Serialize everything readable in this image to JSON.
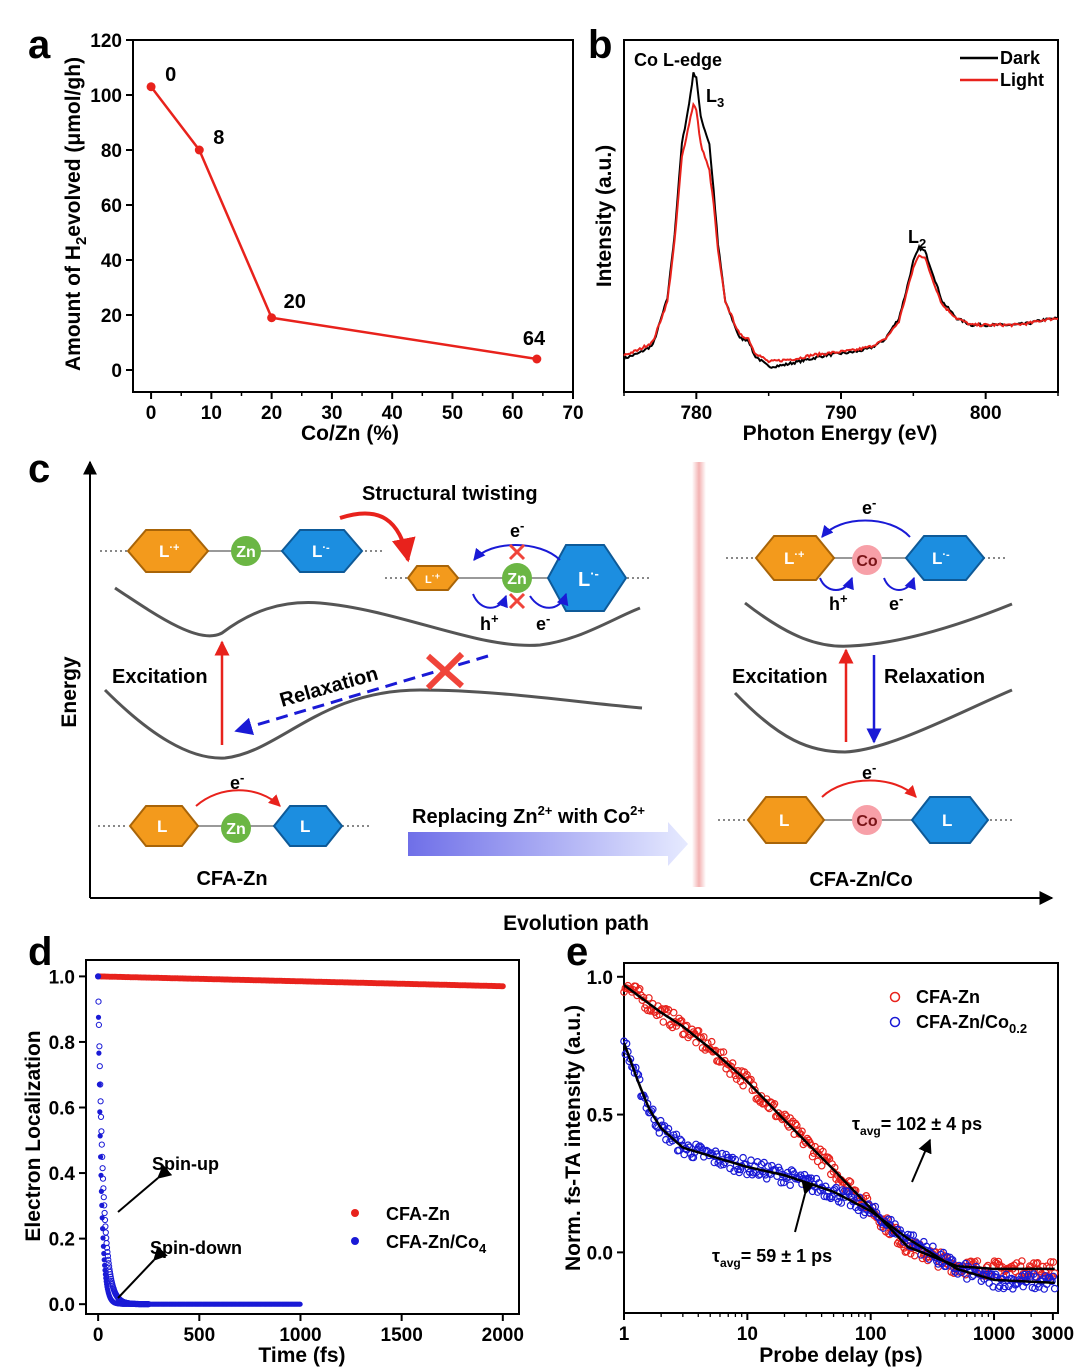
{
  "panels": {
    "a": "a",
    "b": "b",
    "c": "c",
    "d": "d",
    "e": "e"
  },
  "chart_data": [
    {
      "id": "a",
      "type": "line",
      "xlabel": "Co/Zn (%)",
      "ylabel_parts": [
        "Amount of H",
        "2",
        "evolved  (μmol/gh)"
      ],
      "xlim": [
        -3,
        70
      ],
      "ylim": [
        -8,
        120
      ],
      "xticks": [
        0,
        10,
        20,
        30,
        40,
        50,
        60,
        70
      ],
      "yticks": [
        0,
        20,
        40,
        60,
        80,
        100,
        120
      ],
      "color": "#e8221c",
      "x": [
        0,
        8,
        20,
        64
      ],
      "y": [
        103,
        80,
        19,
        4
      ],
      "point_labels": [
        "0",
        "8",
        "20",
        "64"
      ]
    },
    {
      "id": "b",
      "type": "line",
      "title": "Co L-edge",
      "xlabel": "Photon Energy (eV)",
      "ylabel": "Intensity (a.u.)",
      "xlim": [
        775,
        805
      ],
      "ylim": [
        0,
        1.05
      ],
      "xticks": [
        780,
        790,
        800
      ],
      "legend_position": "top-right",
      "peak_labels": [
        {
          "main": "L",
          "sub": "3",
          "x": 780.6,
          "y": 0.95
        },
        {
          "main": "L",
          "sub": "2",
          "x": 795.0,
          "y": 0.42
        }
      ],
      "series": [
        {
          "name": "Dark",
          "color": "#000000",
          "x": [
            775,
            776,
            777,
            778,
            778.5,
            779,
            779.5,
            779.8,
            780,
            780.3,
            780.6,
            780.9,
            781.2,
            781.5,
            782,
            783,
            783.6,
            784,
            785,
            786,
            787,
            788,
            789,
            790,
            791,
            792,
            793,
            794,
            794.5,
            795,
            795.4,
            795.8,
            796.3,
            797,
            798,
            799,
            800,
            801,
            802,
            803,
            804,
            805
          ],
          "y": [
            0.1,
            0.115,
            0.14,
            0.28,
            0.47,
            0.74,
            0.86,
            0.95,
            0.94,
            0.82,
            0.78,
            0.74,
            0.6,
            0.44,
            0.27,
            0.16,
            0.155,
            0.11,
            0.075,
            0.08,
            0.09,
            0.1,
            0.11,
            0.115,
            0.12,
            0.13,
            0.155,
            0.22,
            0.3,
            0.39,
            0.43,
            0.42,
            0.36,
            0.27,
            0.22,
            0.2,
            0.2,
            0.2,
            0.2,
            0.205,
            0.215,
            0.22
          ]
        },
        {
          "name": "Light",
          "color": "#e8221c",
          "x": [
            775,
            776,
            777,
            778,
            778.5,
            779,
            779.5,
            779.8,
            780,
            780.3,
            780.6,
            780.9,
            781.2,
            781.5,
            782,
            783,
            783.6,
            784,
            785,
            786,
            787,
            788,
            789,
            790,
            791,
            792,
            793,
            794,
            794.5,
            795,
            795.4,
            795.8,
            796.3,
            797,
            798,
            799,
            800,
            801,
            802,
            803,
            804,
            805
          ],
          "y": [
            0.11,
            0.125,
            0.15,
            0.27,
            0.45,
            0.7,
            0.8,
            0.86,
            0.84,
            0.74,
            0.7,
            0.66,
            0.56,
            0.42,
            0.27,
            0.17,
            0.16,
            0.12,
            0.09,
            0.095,
            0.1,
            0.11,
            0.115,
            0.12,
            0.125,
            0.135,
            0.155,
            0.21,
            0.29,
            0.37,
            0.41,
            0.4,
            0.34,
            0.26,
            0.22,
            0.2,
            0.2,
            0.2,
            0.2,
            0.205,
            0.215,
            0.22
          ]
        }
      ]
    },
    {
      "id": "d",
      "type": "scatter",
      "xlabel": "Time (fs)",
      "ylabel": "Electron Localization",
      "xlim": [
        -60,
        2080
      ],
      "ylim": [
        -0.03,
        1.05
      ],
      "xticks": [
        0,
        500,
        1000,
        1500,
        2000
      ],
      "yticks": [
        0.0,
        0.2,
        0.4,
        0.6,
        0.8,
        1.0
      ],
      "legend_position": "right",
      "annotations": [
        "Spin-up",
        "Spin-down"
      ],
      "series": [
        {
          "name": "CFA-Zn",
          "color": "#e8221c",
          "x_range": [
            0,
            2000
          ],
          "y_start": 1.0,
          "y_end": 0.97
        },
        {
          "name_parts": [
            "CFA-Zn/Co",
            "4"
          ],
          "color": "#1a1ad6",
          "x_range": [
            0,
            1000
          ],
          "spin_up_decay_tau_fs": 25,
          "spin_down_decay_tau_fs": 15,
          "plateau": 0.0
        }
      ]
    },
    {
      "id": "e",
      "type": "scatter",
      "xlabel": "Probe delay (ps)",
      "ylabel": "Norm. fs-TA intensity (a.u.)",
      "xscale": "log",
      "xlim": [
        1,
        3300
      ],
      "ylim": [
        -0.22,
        1.05
      ],
      "xticks": [
        1,
        10,
        100,
        1000,
        3000
      ],
      "yticks": [
        0.0,
        0.5,
        1.0
      ],
      "legend_position": "top-right",
      "series": [
        {
          "name": "CFA-Zn",
          "color": "#e8221c",
          "fit_x": [
            1,
            2,
            3,
            5,
            10,
            20,
            50,
            100,
            200,
            500,
            1000,
            3000
          ],
          "fit_y": [
            0.97,
            0.87,
            0.82,
            0.74,
            0.62,
            0.48,
            0.3,
            0.16,
            0.02,
            -0.05,
            -0.06,
            -0.06
          ]
        },
        {
          "name_parts": [
            "CFA-Zn/Co",
            "0.2"
          ],
          "color": "#1a1ad6",
          "fit_x": [
            1,
            1.3,
            1.6,
            2,
            3,
            5,
            10,
            20,
            50,
            100,
            200,
            500,
            1000,
            3000
          ],
          "fit_y": [
            0.76,
            0.62,
            0.52,
            0.45,
            0.38,
            0.35,
            0.31,
            0.28,
            0.22,
            0.15,
            0.05,
            -0.06,
            -0.1,
            -0.11
          ]
        }
      ],
      "annotations": [
        {
          "prefix": "τ",
          "sub": "avg",
          "text": "= 102 ± 4 ps"
        },
        {
          "prefix": "τ",
          "sub": "avg",
          "text": "= 59 ± 1 ps"
        }
      ]
    }
  ],
  "schematic": {
    "y_axis_label": "Energy",
    "x_axis_label": "Evolution path",
    "structural_twisting": "Structural twisting",
    "excitation": "Excitation",
    "relaxation": "Relaxation",
    "replacing_main": "Replacing Zn",
    "replacing_sup1": "2+",
    "replacing_mid": " with Co",
    "replacing_sup2": "2+",
    "cfa_zn": "CFA-Zn",
    "cfa_znco": "CFA-Zn/Co",
    "zn": "Zn",
    "co": "Co",
    "l": "L",
    "sup_plus": "·+",
    "sup_minus": "·-",
    "e_minus": "e",
    "h_plus": "h",
    "minus": "-",
    "plus": "+"
  },
  "colors": {
    "red": "#e8221c",
    "blue": "#1a1ad6",
    "orange": "#f39a1c",
    "hex_blue": "#1c8ee0",
    "zn_green": "#6bb644",
    "co_pink": "#f7a0a8"
  }
}
